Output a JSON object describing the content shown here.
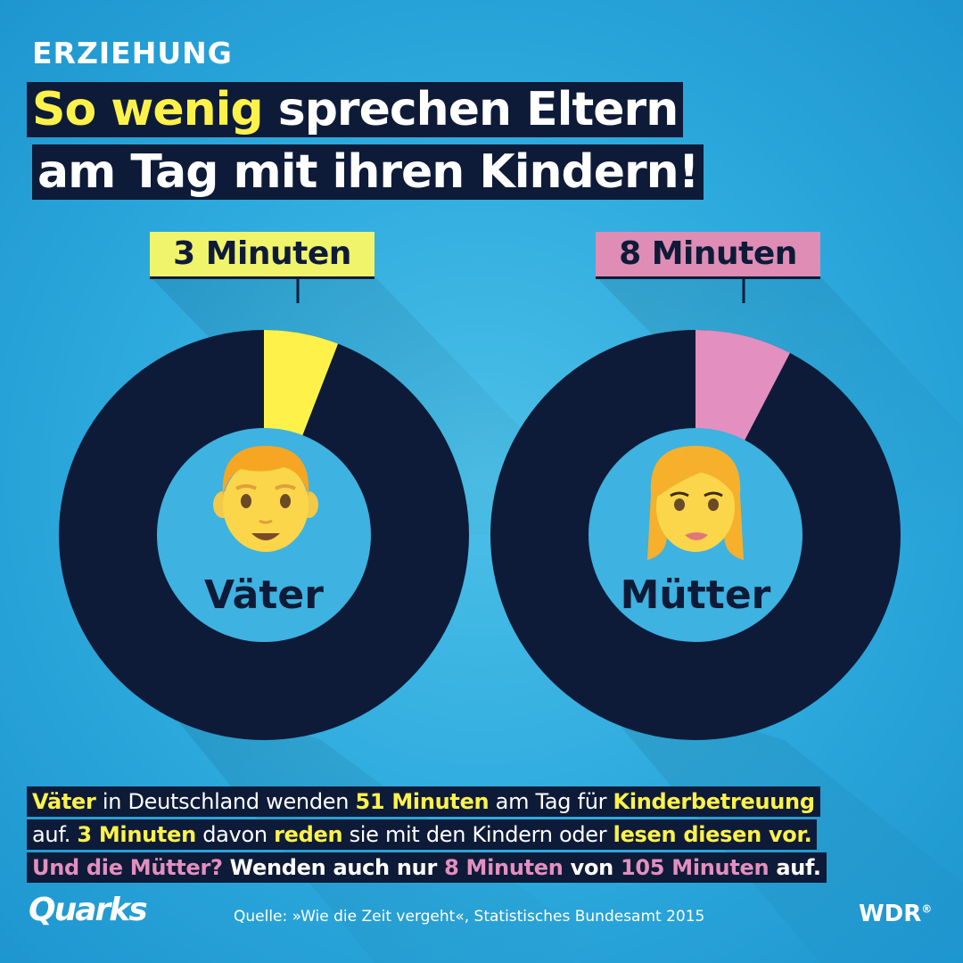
{
  "kicker": "ERZIEHUNG",
  "headline": {
    "line1_accent": "So wenig",
    "line1_rest": " sprechen Eltern",
    "line2": "am Tag mit ihren Kindern!"
  },
  "chart_data": {
    "type": "pie",
    "charts": [
      {
        "name": "Väter",
        "label": "3 Minuten",
        "highlight_value": 3,
        "total": 51,
        "highlight_color": "#fef24a",
        "icon": "father-emoji-icon"
      },
      {
        "name": "Mütter",
        "label": "8 Minuten",
        "highlight_value": 8,
        "total": 105,
        "highlight_color": "#e38fbf",
        "icon": "mother-emoji-icon"
      }
    ],
    "ring_color": "#0e1b38",
    "hole_color": "#3eb2e0"
  },
  "body": {
    "l1_a": "Väter",
    "l1_b": " in Deutschland wenden ",
    "l1_c": "51 Minuten",
    "l1_d": " am Tag für ",
    "l1_e": "Kinderbetreuung",
    "l2_a": "auf. ",
    "l2_b": "3 Minuten",
    "l2_c": " davon ",
    "l2_d": "reden",
    "l2_e": " sie mit den Kindern oder ",
    "l2_f": "lesen diesen vor.",
    "l3_a": "Und die Mütter?",
    "l3_b": " Wenden auch nur ",
    "l3_c": "8 Minuten",
    "l3_d": " von ",
    "l3_e": "105 Minuten",
    "l3_f": " auf."
  },
  "footer": {
    "brand": "Quarks",
    "source": "Quelle: »Wie die Zeit vergeht«, Statistisches Bundesamt 2015",
    "broadcaster": "WDR",
    "broadcaster_mark": "®"
  },
  "colors": {
    "navy": "#0e1b38",
    "yellow": "#fef24a",
    "pink": "#e38fbf",
    "background": "#2ca9dd"
  }
}
